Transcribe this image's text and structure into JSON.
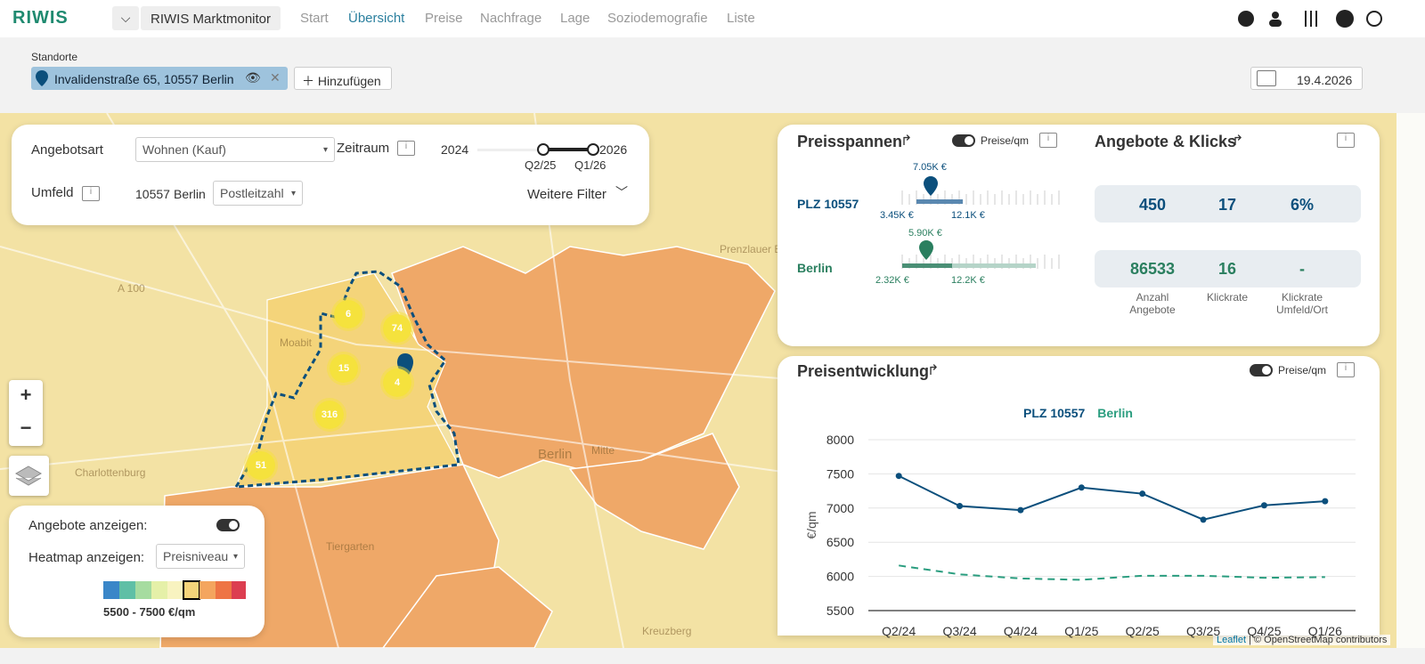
{
  "nav": {
    "logo": "RIWIS",
    "app": "RIWIS Marktmonitor",
    "menu": [
      "Start",
      "Übersicht",
      "Preise",
      "Nachfrage",
      "Lage",
      "Soziodemografie",
      "Liste"
    ]
  },
  "standorte": {
    "label": "Standorte",
    "location": "Invalidenstraße 65, 10557 Berlin",
    "add": "Hinzufügen",
    "date": "19.4.2026"
  },
  "filter": {
    "angebotsart_label": "Angebotsart",
    "angebotsart": "Wohnen (Kauf)",
    "zeitraum_label": "Zeitraum",
    "range_start": "2024",
    "range_end": "2026",
    "from": "Q2/25",
    "to": "Q1/26",
    "umfeld_label": "Umfeld",
    "plz": "10557",
    "city": "Berlin",
    "umfeld": "Postleitzahl",
    "more": "Weitere Filter"
  },
  "map": {
    "places": [
      "Moabit",
      "Berlin",
      "Mitte",
      "Tiergarten",
      "Charlottenburg",
      "Prenzlauer Berg",
      "Kreuzberg",
      "A 100"
    ],
    "clusters": [
      6,
      74,
      15,
      4,
      316,
      51
    ],
    "zoom_in": "+",
    "zoom_out": "−",
    "attribution": [
      "Leaflet",
      "© OpenStreetMap contributors"
    ]
  },
  "layers": {
    "angebote_label": "Angebote anzeigen:",
    "heatmap_label": "Heatmap anzeigen:",
    "heatmap": "Preisniveau",
    "range": "5500 - 7500 €/qm"
  },
  "preisspannen": {
    "title": "Preisspannen",
    "toggle": "Preise/qm",
    "rows": [
      {
        "name": "PLZ 10557",
        "median": "7.05K €",
        "min": "3.45K €",
        "max": "12.1K €"
      },
      {
        "name": "Berlin",
        "median": "5.90K €",
        "min": "2.32K €",
        "max": "12.2K €"
      }
    ]
  },
  "angebote": {
    "title": "Angebote & Klicks",
    "rows": [
      [
        "450",
        "17",
        "6%"
      ],
      [
        "86533",
        "16",
        "-"
      ]
    ],
    "columns": [
      "Anzahl Angebote",
      "Klickrate",
      "Klickrate Umfeld/Ort"
    ]
  },
  "preisentwicklung": {
    "title": "Preisentwicklung",
    "toggle": "Preise/qm"
  },
  "chart_data": {
    "type": "line",
    "ylabel": "€/qm",
    "categories": [
      "Q2/24",
      "Q3/24",
      "Q4/24",
      "Q1/25",
      "Q2/25",
      "Q3/25",
      "Q4/25",
      "Q1/26"
    ],
    "series": [
      {
        "name": "PLZ 10557",
        "color": "#0b4f7c",
        "style": "solid",
        "markers": true,
        "values": [
          7470,
          7030,
          6970,
          7300,
          7210,
          6830,
          7040,
          7100
        ]
      },
      {
        "name": "Berlin",
        "color": "#2a9d7f",
        "style": "dashed",
        "markers": false,
        "values": [
          6160,
          6030,
          5970,
          5950,
          6010,
          6010,
          5980,
          5990
        ]
      }
    ],
    "ylim": [
      5500,
      8000
    ],
    "yticks": [
      5500,
      6000,
      6500,
      7000,
      7500,
      8000
    ],
    "grid": true
  }
}
